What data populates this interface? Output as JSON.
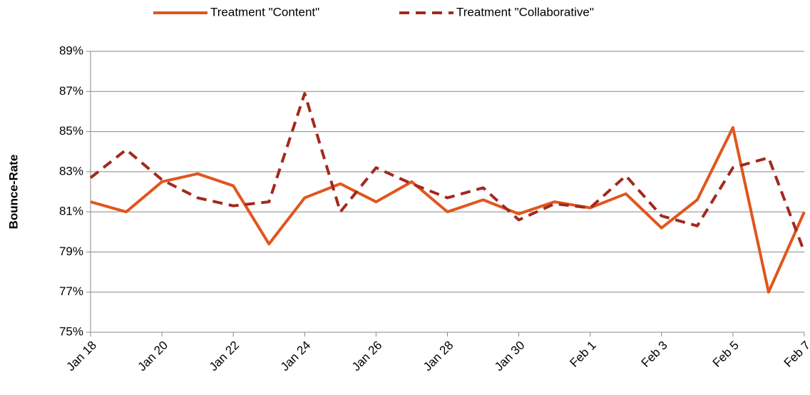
{
  "chart_data": {
    "type": "line",
    "y_label": "Bounce-Rate",
    "categories": [
      "Jan 18",
      null,
      "Jan 20",
      null,
      "Jan 22",
      null,
      "Jan 24",
      null,
      "Jan 26",
      null,
      "Jan 28",
      null,
      "Jan 30",
      null,
      "Feb 1",
      null,
      "Feb 3",
      null,
      "Feb 5",
      null,
      "Feb 7"
    ],
    "series": [
      {
        "name": "Treatment \"Content\"",
        "color": "#e0561e",
        "dash": false,
        "values": [
          81.5,
          81.0,
          82.5,
          82.9,
          82.3,
          79.4,
          81.7,
          82.4,
          81.5,
          82.5,
          81.0,
          81.6,
          80.9,
          81.5,
          81.2,
          81.9,
          80.2,
          81.6,
          85.2,
          77.0,
          81.0
        ]
      },
      {
        "name": "Treatment \"Collaborative\"",
        "color": "#a3281e",
        "dash": true,
        "values": [
          82.7,
          84.1,
          82.6,
          81.7,
          81.3,
          81.5,
          86.9,
          81.0,
          83.2,
          82.4,
          81.7,
          82.2,
          80.6,
          81.4,
          81.2,
          82.8,
          80.8,
          80.3,
          83.2,
          83.7,
          79.0
        ]
      }
    ],
    "ylim": [
      75,
      89
    ],
    "yticks": [
      {
        "value": 75,
        "label": "75%"
      },
      {
        "value": 77,
        "label": "77%"
      },
      {
        "value": 79,
        "label": "79%"
      },
      {
        "value": 81,
        "label": "81%"
      },
      {
        "value": 83,
        "label": "83%"
      },
      {
        "value": 85,
        "label": "85%"
      },
      {
        "value": 87,
        "label": "87%"
      },
      {
        "value": 89,
        "label": "89%"
      }
    ],
    "grid": true,
    "legend": "top"
  }
}
